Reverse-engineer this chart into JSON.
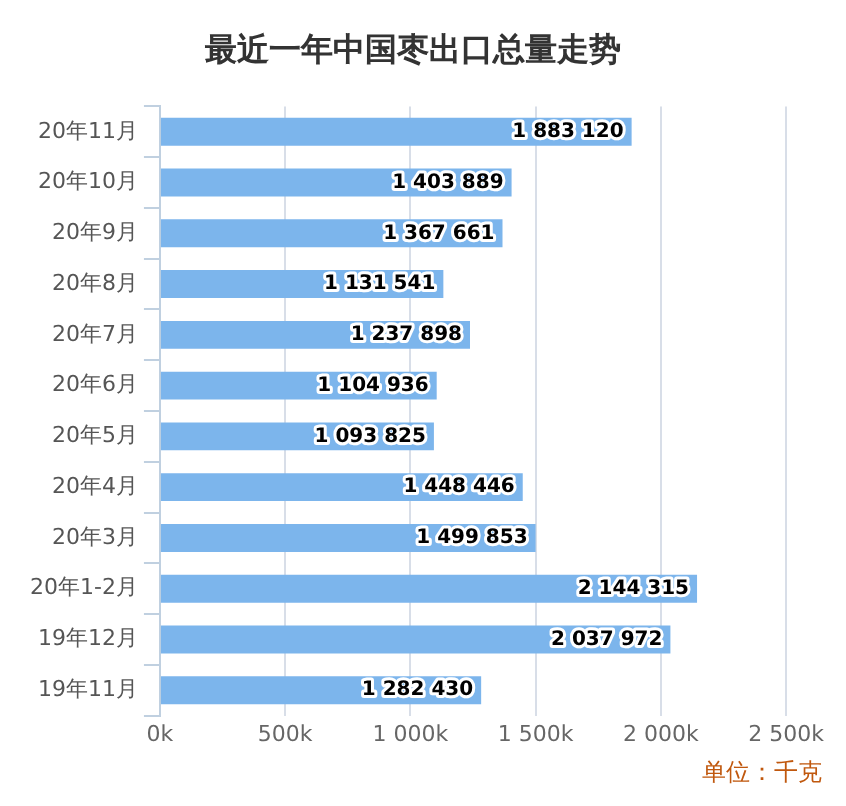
{
  "chart_data": {
    "type": "bar",
    "orientation": "horizontal",
    "title": "最近一年中国枣出口总量走势",
    "categories": [
      "20年11月",
      "20年10月",
      "20年9月",
      "20年8月",
      "20年7月",
      "20年6月",
      "20年5月",
      "20年4月",
      "20年3月",
      "20年1-2月",
      "19年12月",
      "19年11月"
    ],
    "values": [
      1883120,
      1403889,
      1367661,
      1131541,
      1237898,
      1104936,
      1093825,
      1448446,
      1499853,
      2144315,
      2037972,
      1282430
    ],
    "value_labels": [
      "1 883 120",
      "1 403 889",
      "1 367 661",
      "1 131 541",
      "1 237 898",
      "1 104 936",
      "1 093 825",
      "1 448 446",
      "1 499 853",
      "2 144 315",
      "2 037 972",
      "1 282 430"
    ],
    "color": "#7cb5ec",
    "xlim": [
      0,
      2500000
    ],
    "xticks": [
      {
        "value": 0,
        "label": "0k"
      },
      {
        "value": 500000,
        "label": "500k"
      },
      {
        "value": 1000000,
        "label": "1 000k"
      },
      {
        "value": 1500000,
        "label": "1 500k"
      },
      {
        "value": 2000000,
        "label": "2 000k"
      },
      {
        "value": 2500000,
        "label": "2 500k"
      }
    ],
    "grid": "x",
    "legend": false,
    "annotations": [
      "单位：千克"
    ]
  }
}
